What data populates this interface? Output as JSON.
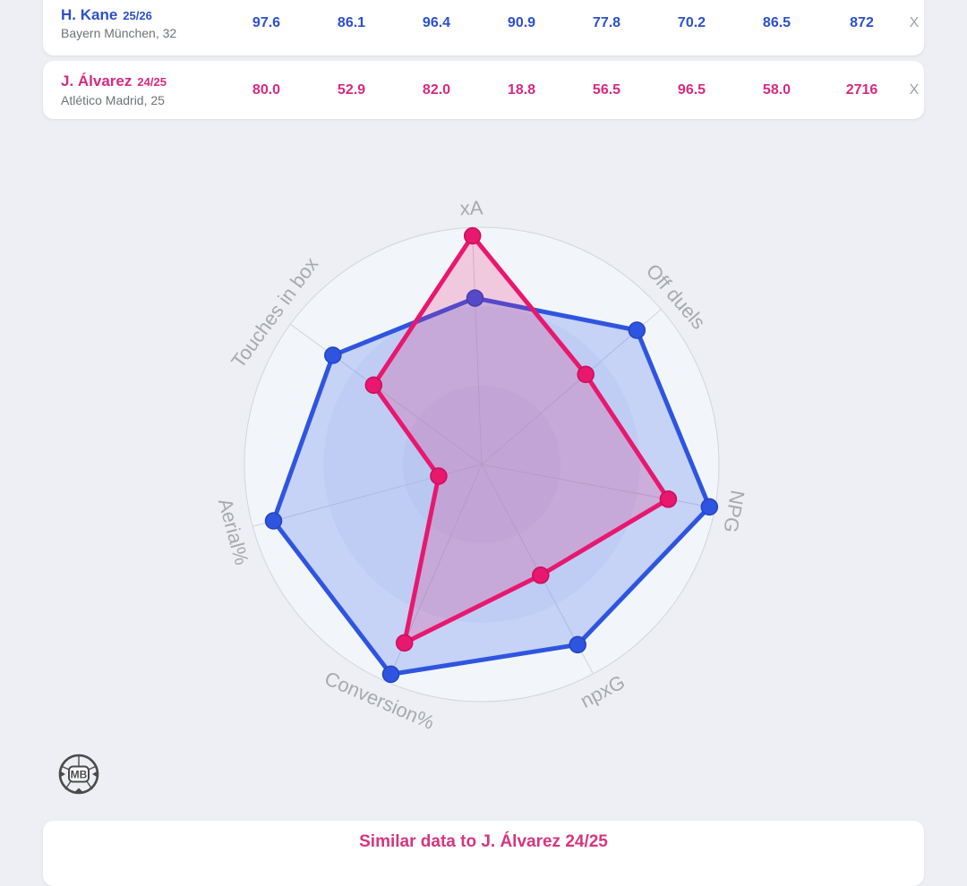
{
  "table": {
    "rows": [
      {
        "player": "H. Kane",
        "season": "25/26",
        "club_age": "Bayern München, 32",
        "accent": "#2b50c8",
        "values": [
          "97.6",
          "86.1",
          "96.4",
          "90.9",
          "77.8",
          "70.2",
          "86.5",
          "872"
        ],
        "remove_label": "X"
      },
      {
        "player": "J. Álvarez",
        "season": "24/25",
        "club_age": "Atlético Madrid, 25",
        "accent": "#d62a80",
        "values": [
          "80.0",
          "52.9",
          "82.0",
          "18.8",
          "56.5",
          "96.5",
          "58.0",
          "2716"
        ],
        "remove_label": "X"
      }
    ]
  },
  "chart_data": {
    "type": "radar",
    "axes": [
      "xA",
      "Off duels",
      "NPG",
      "npxG",
      "Conversion%",
      "Aerial%",
      "Touches in box"
    ],
    "scale": [
      0,
      100
    ],
    "rotation_offset_deg": 2.3,
    "series": [
      {
        "name": "H. Kane 25/26",
        "color": "#2f55e0",
        "dot_stroke": "#2343c0",
        "fill": "rgba(95,125,238,0.30)",
        "values": [
          70.2,
          86.5,
          97.6,
          86.1,
          96.4,
          90.9,
          77.8
        ]
      },
      {
        "name": "J. Álvarez 24/25",
        "color": "#e8186e",
        "dot_stroke": "#c90e5c",
        "fill": "rgba(233,25,110,0.20)",
        "values": [
          96.5,
          58.0,
          80.0,
          52.9,
          82.0,
          18.8,
          56.5
        ]
      }
    ],
    "rings": {
      "fractions": [
        1,
        0.6667,
        0.3333
      ],
      "colors": [
        "#f2f6fa",
        "#e9f0f7",
        "#dfe9f3"
      ]
    },
    "spoke_color": "#d0d3d8",
    "outer_stroke": "#d2d5da",
    "label_color": "#a6a9ae",
    "legend_position": "none",
    "grid": true
  },
  "logo": {
    "text": "MB"
  },
  "footer": {
    "text": "Similar data to J. Álvarez 24/25",
    "color": "#d4367f"
  }
}
